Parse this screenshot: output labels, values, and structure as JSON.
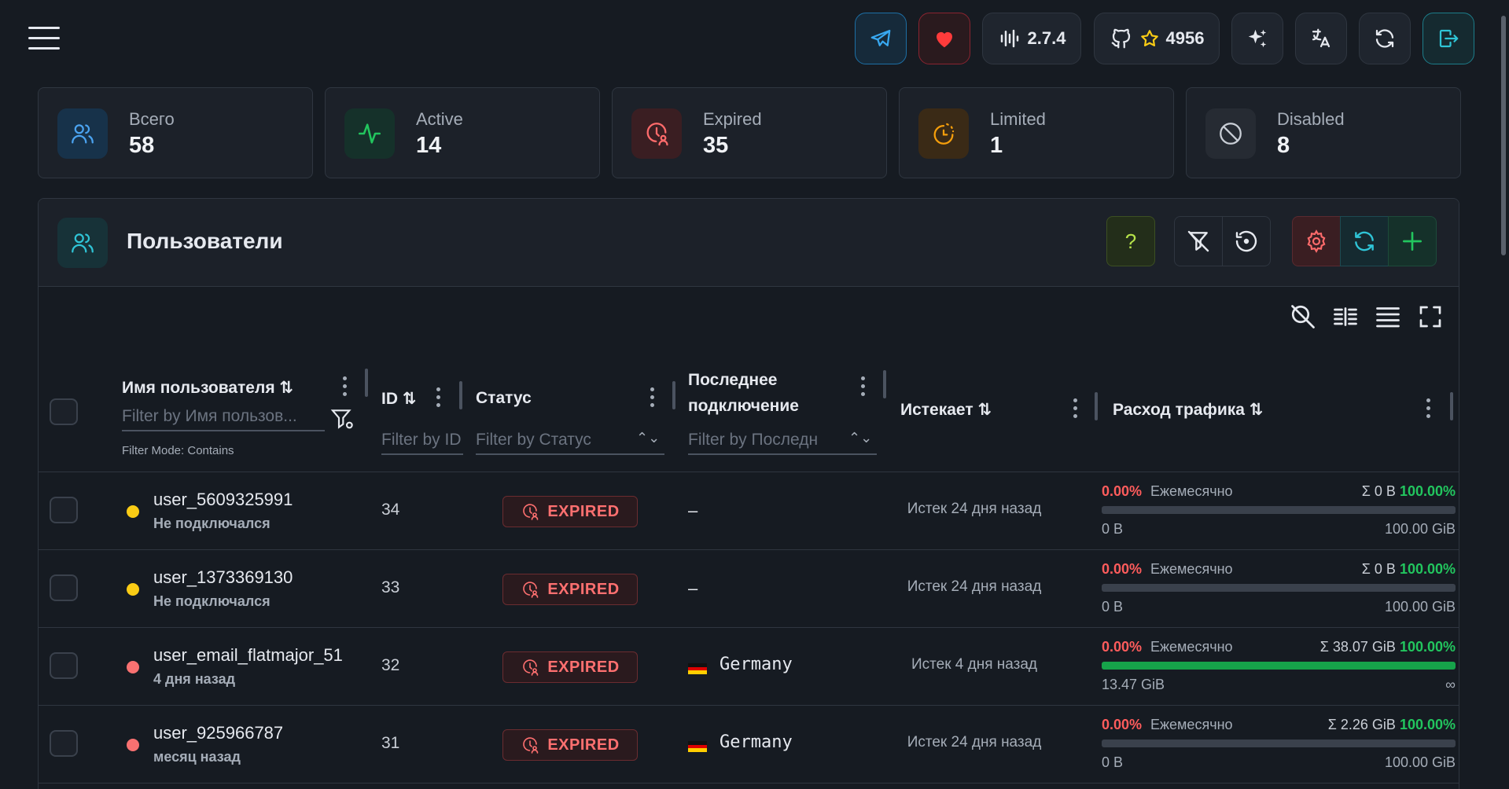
{
  "topbar": {
    "version": "2.7.4",
    "stars": "4956"
  },
  "stats": [
    {
      "label": "Всего",
      "value": "58"
    },
    {
      "label": "Active",
      "value": "14"
    },
    {
      "label": "Expired",
      "value": "35"
    },
    {
      "label": "Limited",
      "value": "1"
    },
    {
      "label": "Disabled",
      "value": "8"
    }
  ],
  "panel": {
    "title": "Пользователи",
    "help_label": "?"
  },
  "columns": {
    "username": "Имя пользователя",
    "id": "ID",
    "status": "Статус",
    "last_line1": "Последнее",
    "last_line2": "подключение",
    "expires": "Истекает",
    "traffic": "Расход трафика"
  },
  "filters": {
    "username": "Filter by Имя пользов...",
    "id": "Filter by ID",
    "status": "Filter by Статус",
    "last": "Filter by Последн",
    "mode": "Filter Mode: Contains"
  },
  "rows": [
    {
      "name": "user_5609325991",
      "sub": "Не подключался",
      "id": "34",
      "status": "EXPIRED",
      "last": "–",
      "country": "",
      "expires": "Истек 24 дня назад",
      "pct": "0.00%",
      "period": "Ежемесячно",
      "total": "Σ 0 B",
      "total_pct": "100.00%",
      "used": "0 B",
      "limit": "100.00 GiB",
      "fill": 0,
      "dot": "#facc15"
    },
    {
      "name": "user_1373369130",
      "sub": "Не подключался",
      "id": "33",
      "status": "EXPIRED",
      "last": "–",
      "country": "",
      "expires": "Истек 24 дня назад",
      "pct": "0.00%",
      "period": "Ежемесячно",
      "total": "Σ 0 B",
      "total_pct": "100.00%",
      "used": "0 B",
      "limit": "100.00 GiB",
      "fill": 0,
      "dot": "#facc15"
    },
    {
      "name": "user_email_flatmajor_51",
      "sub": "4 дня назад",
      "id": "32",
      "status": "EXPIRED",
      "last": "",
      "country": "Germany",
      "expires": "Истек 4 дня назад",
      "pct": "0.00%",
      "period": "Ежемесячно",
      "total": "Σ 38.07 GiB",
      "total_pct": "100.00%",
      "used": "13.47 GiB",
      "limit": "∞",
      "fill": 1,
      "dot": "#f87171"
    },
    {
      "name": "user_925966787",
      "sub": "месяц назад",
      "id": "31",
      "status": "EXPIRED",
      "last": "",
      "country": "Germany",
      "expires": "Истек 24 дня назад",
      "pct": "0.00%",
      "period": "Ежемесячно",
      "total": "Σ 2.26 GiB",
      "total_pct": "100.00%",
      "used": "0 B",
      "limit": "100.00 GiB",
      "fill": 0,
      "dot": "#f87171"
    }
  ]
}
